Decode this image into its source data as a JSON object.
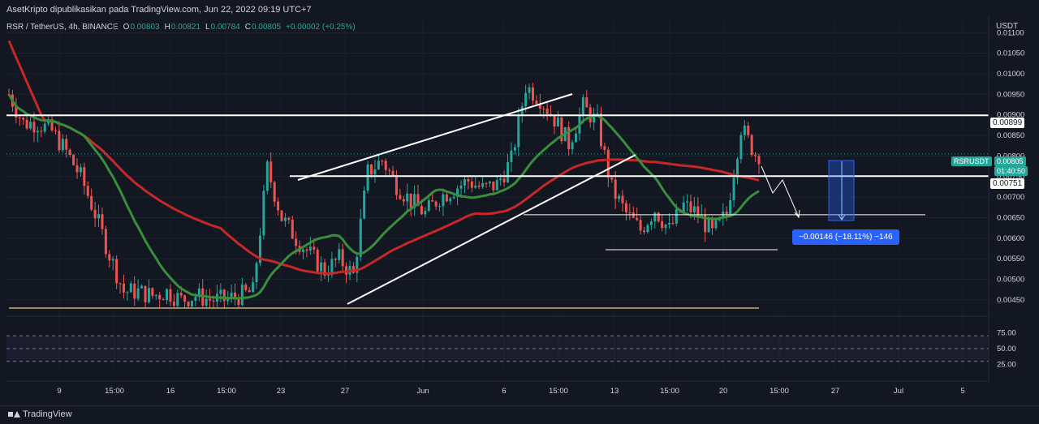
{
  "header": {
    "publisher_line": "AsetKripto dipublikasikan pada TradingView.com, Jun 22, 2022 09:19 UTC+7"
  },
  "symbol": {
    "name": "RSR / TetherUS, 4h, BINANCE",
    "o_label": "O",
    "o": "0.00803",
    "h_label": "H",
    "h": "0.00821",
    "l_label": "L",
    "l": "0.00784",
    "c_label": "C",
    "c": "0.00805",
    "change": "+0.00002 (+0.25%)"
  },
  "axis_unit": "USDT",
  "price_tags": {
    "upper_line": "0.00899",
    "symbol": "RSRUSDT",
    "last": "0.00805",
    "countdown": "01:40:50",
    "middle_line": "0.00751"
  },
  "measure": {
    "label": "−0.00146 (−18.11%) −146"
  },
  "footer": {
    "brand": "TradingView"
  },
  "colors": {
    "background": "#131722",
    "up": "#26a69a",
    "down": "#ef5350",
    "ma_slow": "#c62828",
    "ma_fast": "#388e3c",
    "rsi": "#7e57c2",
    "rsi_signal": "#f5d547",
    "measure": "#2962ff"
  },
  "chart_data": [
    {
      "type": "candlestick",
      "title": "RSR / TetherUS, 4h, BINANCE",
      "ylabel": "USDT",
      "ylim": [
        0.0043,
        0.0114
      ],
      "y_ticks": [
        "0.01100",
        "0.01050",
        "0.01000",
        "0.00950",
        "0.00900",
        "0.00850",
        "0.00800",
        "0.00750",
        "0.00700",
        "0.00650",
        "0.00600",
        "0.00550",
        "0.00500",
        "0.00450"
      ],
      "x_ticks": [
        "9",
        "15:00",
        "16",
        "15:00",
        "23",
        "27",
        "Jun",
        "6",
        "15:00",
        "13",
        "15:00",
        "20",
        "15:00",
        "27",
        "Jul",
        "5"
      ],
      "horizontal_levels": [
        0.00899,
        0.00751,
        0.00657,
        0.00572
      ],
      "close_path": [
        [
          0,
          0.0095
        ],
        [
          4,
          0.0088
        ],
        [
          8,
          0.0088
        ],
        [
          12,
          0.0086
        ],
        [
          16,
          0.0081
        ],
        [
          20,
          0.0075
        ],
        [
          24,
          0.0066
        ],
        [
          28,
          0.0056
        ],
        [
          32,
          0.0047
        ],
        [
          36,
          0.0047
        ],
        [
          40,
          0.0046
        ],
        [
          44,
          0.0047
        ],
        [
          48,
          0.0045
        ],
        [
          52,
          0.0046
        ],
        [
          56,
          0.0045
        ],
        [
          60,
          0.0045
        ],
        [
          64,
          0.0046
        ],
        [
          68,
          0.0047
        ],
        [
          72,
          0.0077
        ],
        [
          76,
          0.0065
        ],
        [
          80,
          0.006
        ],
        [
          84,
          0.0056
        ],
        [
          88,
          0.0052
        ],
        [
          92,
          0.0055
        ],
        [
          96,
          0.0051
        ],
        [
          100,
          0.0076
        ],
        [
          104,
          0.0079
        ],
        [
          108,
          0.0073
        ],
        [
          112,
          0.0069
        ],
        [
          116,
          0.0066
        ],
        [
          120,
          0.007
        ],
        [
          124,
          0.0072
        ],
        [
          128,
          0.0074
        ],
        [
          132,
          0.0072
        ],
        [
          136,
          0.0073
        ],
        [
          140,
          0.0079
        ],
        [
          144,
          0.0097
        ],
        [
          148,
          0.0094
        ],
        [
          152,
          0.0089
        ],
        [
          156,
          0.0083
        ],
        [
          160,
          0.0092
        ],
        [
          164,
          0.0088
        ],
        [
          168,
          0.0072
        ],
        [
          172,
          0.0066
        ],
        [
          176,
          0.0062
        ],
        [
          180,
          0.0067
        ],
        [
          184,
          0.0062
        ],
        [
          188,
          0.0068
        ],
        [
          192,
          0.0066
        ],
        [
          196,
          0.0061
        ],
        [
          200,
          0.0066
        ],
        [
          204,
          0.0087
        ],
        [
          208,
          0.00805
        ]
      ],
      "series": [
        {
          "name": "",
          "values_note": "",
          "color_key": "ma_slow"
        },
        {
          "name": "",
          "values_note": "",
          "color_key": "ma_fast"
        }
      ]
    },
    {
      "type": "line",
      "title": "",
      "ylim": [
        12,
        88
      ],
      "y_ticks": [
        "75.00",
        "50.00",
        "25.00"
      ],
      "bands": [
        70,
        50,
        30
      ],
      "series": [
        {
          "name": "",
          "color_key": "rsi"
        },
        {
          "name": "",
          "color_key": "rsi_signal"
        }
      ]
    }
  ]
}
